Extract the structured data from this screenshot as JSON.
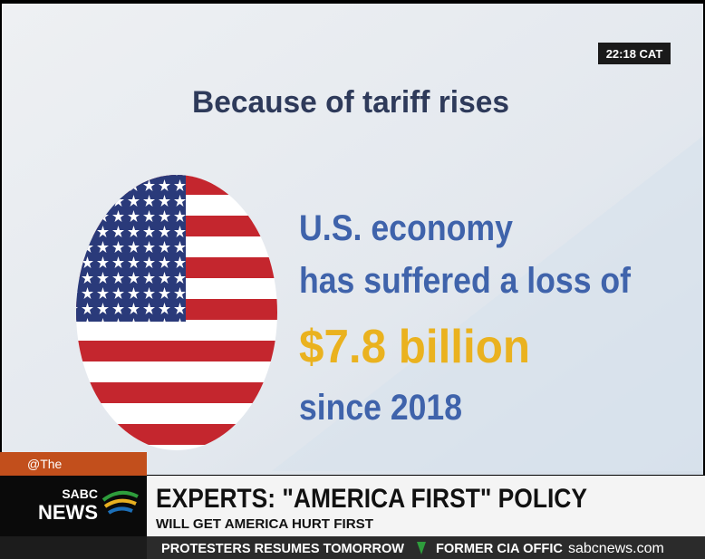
{
  "clock": "22:18 CAT",
  "slide": {
    "heading": "Because of tariff rises",
    "lines": [
      "U.S. economy",
      "has suffered a loss of",
      "$7.8 billion",
      "since 2018"
    ]
  },
  "tag": "@The",
  "logo": {
    "top": "SABC",
    "bottom": "NEWS"
  },
  "headline": {
    "title": "EXPERTS: \"AMERICA FIRST\" POLICY",
    "subtitle": "WILL GET AMERICA HURT FIRST"
  },
  "ticker": {
    "items": [
      "PROTESTERS RESUMES TOMORROW",
      "FORMER CIA OFFIC"
    ],
    "site": "sabcnews.com"
  }
}
